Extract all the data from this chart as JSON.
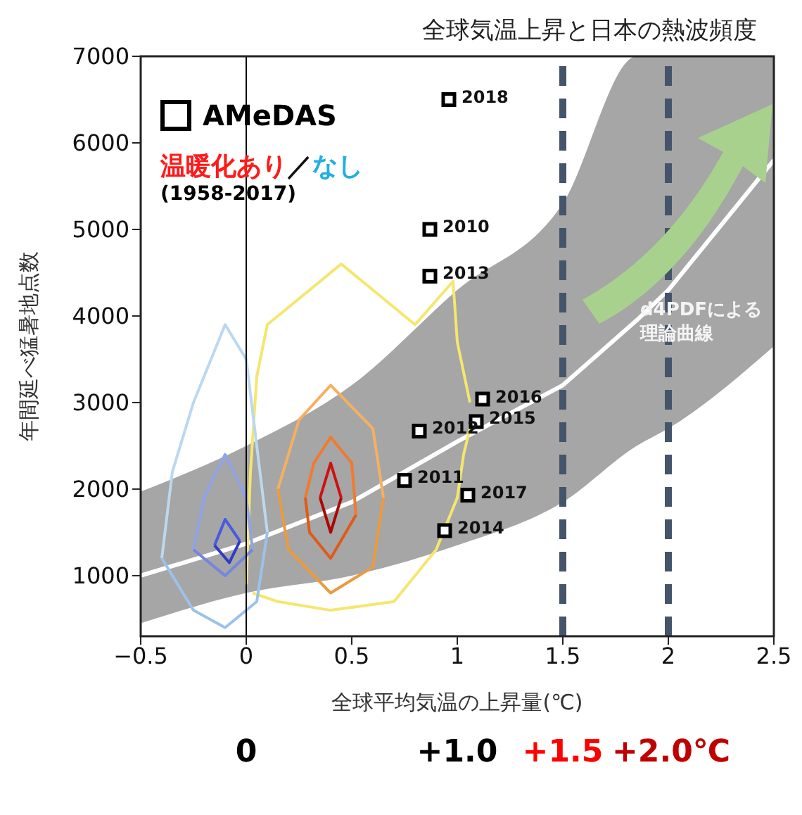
{
  "chart_data": {
    "type": "line",
    "title": "全球気温上昇と日本の熱波頻度",
    "xlabel": "全球平均気温の上昇量(℃)",
    "ylabel": "年間延べ猛暑地点数",
    "xlim": [
      -0.5,
      2.5
    ],
    "xticks": [
      {
        "value": -0.5,
        "label": "−0.5"
      },
      0,
      0.5,
      1,
      1.5,
      2,
      2.5
    ],
    "ylim": [
      300,
      7000
    ],
    "yticks": [
      1000,
      2000,
      3000,
      4000,
      5000,
      6000,
      7000
    ],
    "grid": false,
    "legend": "top left",
    "marker": "none",
    "line_style": "solid",
    "series": [
      {
        "color": "#ffffff",
        "x": [
          -0.5,
          0,
          0.5,
          1,
          1.5,
          1.85,
          2,
          2.5
        ],
        "values": [
          1000,
          1370,
          1850,
          2550,
          3200,
          3950,
          4300,
          5800
        ],
        "lower": [
          450,
          800,
          1000,
          1350,
          1850,
          2500,
          2700,
          3650
        ],
        "upper": [
          1970,
          2500,
          3200,
          4300,
          5300,
          7000,
          7000,
          7000
        ]
      },
      {
        "color": "#f5e66e",
        "x": [
          0.0,
          0.02,
          0.05,
          0.1,
          0.35,
          0.45,
          0.6,
          0.8,
          0.98,
          1.0,
          1.06
        ],
        "values": [
          900,
          2200,
          3300,
          3900,
          4400,
          4600,
          4300,
          3900,
          4400,
          3700,
          3000
        ]
      },
      {
        "color": "#f5e66e",
        "x": [
          0.03,
          0.15,
          0.4,
          0.7,
          0.9,
          1.0,
          1.03,
          1.06
        ],
        "values": [
          800,
          700,
          600,
          700,
          1300,
          1900,
          2400,
          2700
        ]
      },
      {
        "color": "#bcd8f0",
        "x": [
          -0.4,
          -0.35,
          -0.25,
          -0.1,
          0.0,
          0.05,
          0.1
        ],
        "values": [
          1200,
          2200,
          3000,
          3900,
          3500,
          2500,
          1500
        ]
      },
      {
        "color": "#9cc2ea",
        "x": [
          -0.4,
          -0.25,
          -0.1,
          0.05,
          0.1
        ],
        "values": [
          1200,
          600,
          400,
          700,
          1500
        ]
      },
      {
        "color": "#8fa3e8",
        "x": [
          -0.25,
          -0.2,
          -0.1,
          0.0,
          0.03
        ],
        "values": [
          1300,
          1900,
          2400,
          1900,
          1300
        ]
      },
      {
        "color": "#7286e0",
        "x": [
          -0.25,
          -0.1,
          0.03
        ],
        "values": [
          1300,
          1000,
          1300
        ]
      },
      {
        "color": "#4a5ae0",
        "x": [
          -0.15,
          -0.1,
          -0.03
        ],
        "values": [
          1350,
          1650,
          1400
        ]
      },
      {
        "color": "#2e3cc8",
        "x": [
          -0.15,
          -0.08,
          -0.03
        ],
        "values": [
          1350,
          1150,
          1400
        ]
      },
      {
        "color": "#f5b060",
        "x": [
          0.15,
          0.25,
          0.4,
          0.6,
          0.65
        ],
        "values": [
          2000,
          2800,
          3200,
          2700,
          1900
        ]
      },
      {
        "color": "#eb9a40",
        "x": [
          0.15,
          0.2,
          0.4,
          0.6,
          0.65
        ],
        "values": [
          2000,
          1300,
          800,
          1100,
          1900
        ]
      },
      {
        "color": "#f07a30",
        "x": [
          0.28,
          0.32,
          0.4,
          0.5,
          0.52
        ],
        "values": [
          1900,
          2300,
          2600,
          2300,
          1700
        ]
      },
      {
        "color": "#e05a18",
        "x": [
          0.28,
          0.3,
          0.4,
          0.52
        ],
        "values": [
          1900,
          1500,
          1200,
          1700
        ]
      },
      {
        "color": "#d01010",
        "x": [
          0.35,
          0.4,
          0.45
        ],
        "values": [
          1900,
          2300,
          1900
        ]
      },
      {
        "color": "#a80808",
        "x": [
          0.35,
          0.4,
          0.45
        ],
        "values": [
          1900,
          1500,
          1900
        ]
      },
      {
        "type": "scatter",
        "name": "AMeDAS",
        "color": "#000000",
        "marker": "square",
        "x": [
          0.96,
          0.87,
          0.87,
          1.12,
          1.09,
          0.82,
          0.75,
          1.05,
          0.94
        ],
        "values": [
          6500,
          5000,
          4460,
          3040,
          2780,
          2670,
          2100,
          1930,
          1520
        ]
      }
    ],
    "ref_lines": [
      {
        "axis": "x",
        "value": 0,
        "color": "#000000",
        "line_style": "solid"
      },
      {
        "axis": "x",
        "value": 1.5,
        "color": "#44546a",
        "line_style": "dashed"
      },
      {
        "axis": "x",
        "value": 2,
        "color": "#44546a",
        "line_style": "dashed"
      }
    ],
    "annotations": [
      "温暖化あり",
      "／",
      "なし",
      "(1958-2017)",
      "d4PDFによる理論曲線",
      "0",
      "+1.0",
      "+1.5",
      "+2.0℃",
      {
        "text": "2018",
        "x": 0.96,
        "y": 6500
      },
      {
        "text": "2010",
        "x": 0.87,
        "y": 5000
      },
      {
        "text": "2013",
        "x": 0.87,
        "y": 4460
      },
      {
        "text": "2016",
        "x": 1.12,
        "y": 3040
      },
      {
        "text": "2015",
        "x": 1.09,
        "y": 2780
      },
      {
        "text": "2012",
        "x": 0.82,
        "y": 2670
      },
      {
        "text": "2011",
        "x": 0.75,
        "y": 2100
      },
      {
        "text": "2017",
        "x": 1.05,
        "y": 1930
      },
      {
        "text": "2014",
        "x": 0.94,
        "y": 1520
      }
    ]
  }
}
